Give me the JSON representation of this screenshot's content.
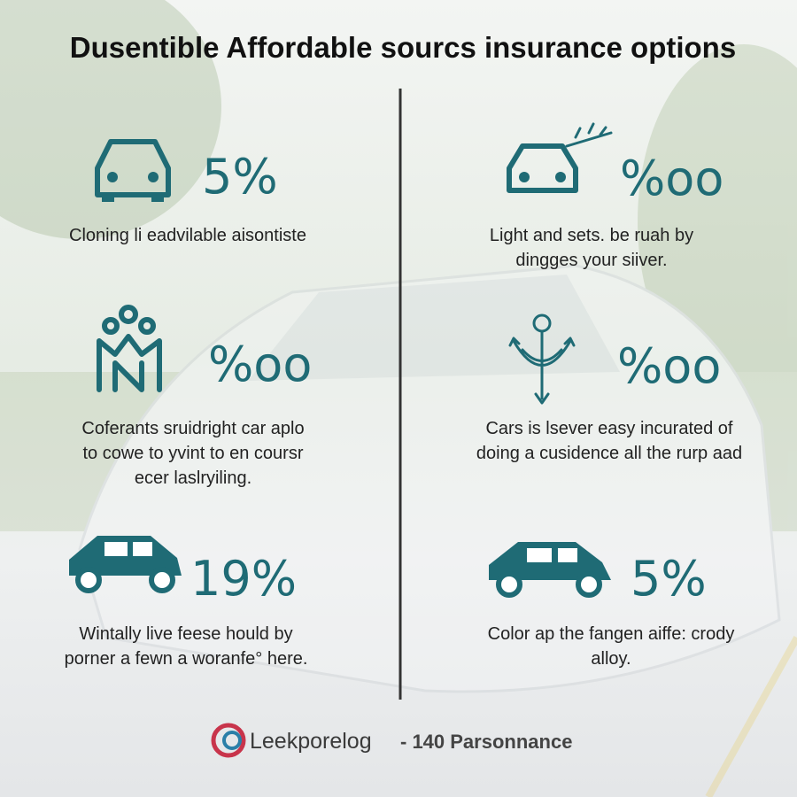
{
  "title": "Dusentible Affordable sourcs insurance options",
  "items": [
    {
      "value": "5%",
      "lines": [
        "Cloning li eadvilable aisontiste"
      ]
    },
    {
      "value": "%oo",
      "lines": [
        "Light and sets. be ruah by",
        "dingges your siiver."
      ]
    },
    {
      "value": "%oo",
      "lines": [
        "Coferants sruidright car aplo",
        "to cowe to yvint to en coursr",
        "ecer laslryiling."
      ]
    },
    {
      "value": "%oo",
      "lines": [
        "Cars is lsever easy incurated of",
        "doing a cusidence all the rurp aad"
      ]
    },
    {
      "value": "19%",
      "lines": [
        "Wintally live feese hould by",
        "porner a fewn a woranfe° here."
      ]
    },
    {
      "value": "5%",
      "lines": [
        "Color ap the fangen aiffe: crody",
        "alloy."
      ]
    }
  ],
  "footer": {
    "brand": "Leekporelog",
    "tagline": "- 140 Parsonnance"
  }
}
